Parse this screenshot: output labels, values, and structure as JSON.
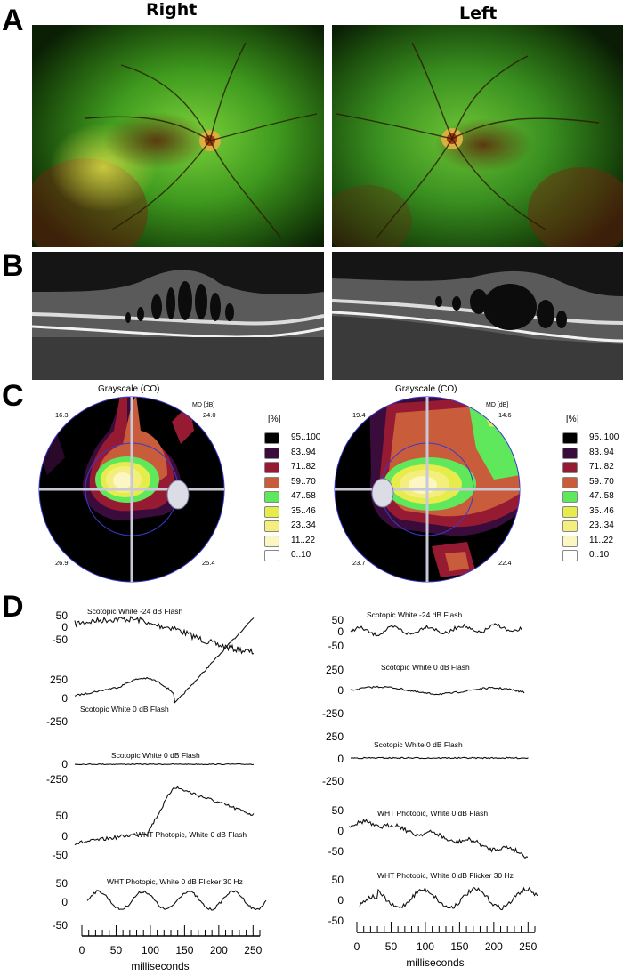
{
  "panels": {
    "a": "A",
    "b": "B",
    "c": "C",
    "d": "D"
  },
  "eyes": {
    "right": "Right",
    "left": "Left"
  },
  "visual_field": {
    "right": {
      "title": "Grayscale (CO)",
      "md_label": "MD [dB]",
      "md_value": "24.0",
      "q_top_left": "16.3",
      "q_bottom_left": "26.9",
      "q_bottom_right": "25.4"
    },
    "left": {
      "title": "Grayscale (CO)",
      "md_label": "MD [dB]",
      "md_value": "14.6",
      "q_top_left": "19.4",
      "q_bottom_left": "23.7",
      "q_bottom_right": "22.4"
    }
  },
  "legend": {
    "header": "[%]",
    "items": [
      {
        "label": "95..100",
        "color": "#000000"
      },
      {
        "label": "83..94",
        "color": "#3a0c3c"
      },
      {
        "label": "71..82",
        "color": "#961a32"
      },
      {
        "label": "59..70",
        "color": "#c95c3a"
      },
      {
        "label": "47..58",
        "color": "#5fe85b"
      },
      {
        "label": "35..46",
        "color": "#e6ec4c"
      },
      {
        "label": "23..34",
        "color": "#f4ee7d"
      },
      {
        "label": "11..22",
        "color": "#fbf6c2"
      },
      {
        "label": "0..10",
        "color": "#ffffff"
      }
    ]
  },
  "erg": {
    "right": [
      {
        "label": "Scotopic  White -24 dB Flash",
        "ticks": [
          "50",
          "0",
          "-50"
        ]
      },
      {
        "label": "Scotopic  White 0 dB Flash",
        "ticks": [
          "250",
          "0",
          "-250"
        ]
      },
      {
        "label": "Scotopic  White 0 dB Flash",
        "ticks": [
          "0"
        ]
      },
      {
        "label": "WHT Photopic,  White 0 dB Flash",
        "ticks": [
          "-250",
          "50",
          "0",
          "-50"
        ]
      },
      {
        "label": "WHT Photopic,  White 0 dB Flicker 30 Hz",
        "ticks": [
          "50",
          "0",
          "-50"
        ]
      }
    ],
    "left": [
      {
        "label": "Scotopic  White -24 dB Flash",
        "ticks": [
          "50",
          "0",
          "-50"
        ]
      },
      {
        "label": "Scotopic  White 0 dB Flash",
        "ticks": [
          "250",
          "0",
          "-250"
        ]
      },
      {
        "label": "Scotopic  White 0 dB Flash",
        "ticks": [
          "250",
          "0",
          "-250"
        ]
      },
      {
        "label": "WHT Photopic,  White 0 dB Flash",
        "ticks": [
          "50",
          "0",
          "-50"
        ]
      },
      {
        "label": "WHT Photopic,  White 0 dB Flicker 30 Hz",
        "ticks": [
          "50",
          "0",
          "-50"
        ]
      }
    ],
    "time_axis": {
      "label": "milliseconds",
      "ticks": [
        "0",
        "50",
        "100",
        "150",
        "200",
        "250"
      ],
      "range_ms": [
        0,
        260
      ]
    }
  }
}
